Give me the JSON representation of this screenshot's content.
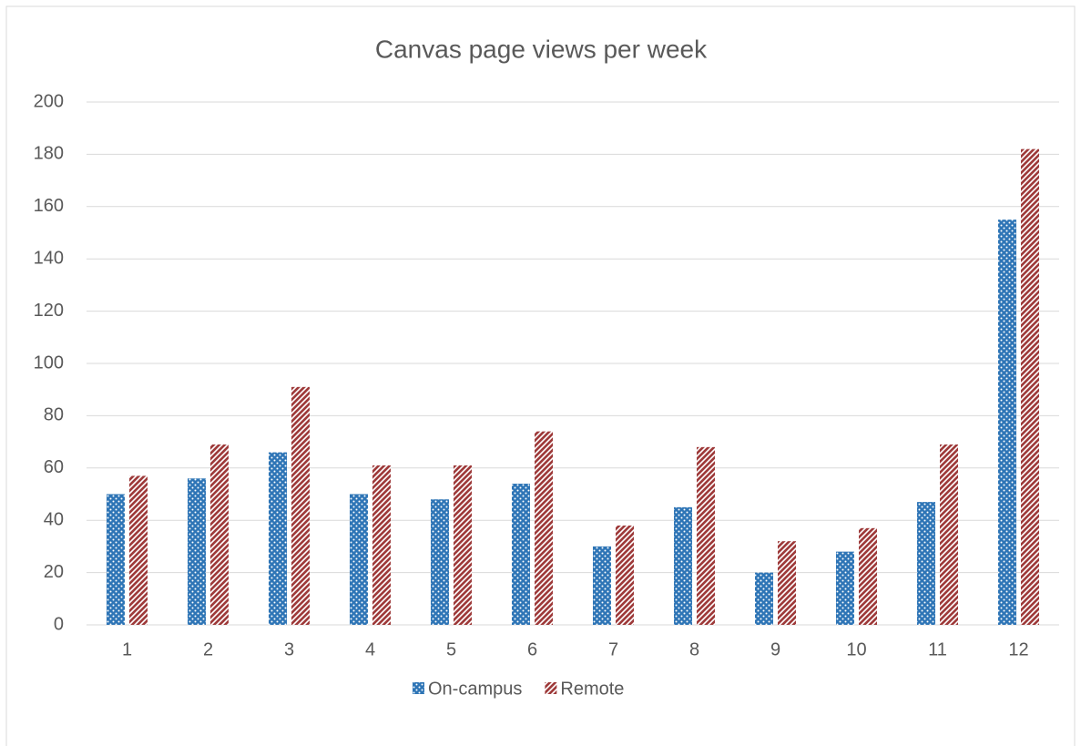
{
  "chart_data": {
    "type": "bar",
    "title": "Canvas page views per week",
    "categories": [
      "1",
      "2",
      "3",
      "4",
      "5",
      "6",
      "7",
      "8",
      "9",
      "10",
      "11",
      "12"
    ],
    "series": [
      {
        "name": "On-campus",
        "color": "#2e75b6",
        "values": [
          50,
          56,
          66,
          50,
          48,
          54,
          30,
          45,
          20,
          28,
          47,
          155
        ]
      },
      {
        "name": "Remote",
        "color": "#9e3a3a",
        "values": [
          57,
          69,
          91,
          61,
          61,
          74,
          38,
          68,
          32,
          37,
          69,
          182
        ]
      }
    ],
    "ylim": [
      0,
      200
    ],
    "yticks": [
      0,
      20,
      40,
      60,
      80,
      100,
      120,
      140,
      160,
      180,
      200
    ],
    "grid": true,
    "legend": "bottom"
  }
}
